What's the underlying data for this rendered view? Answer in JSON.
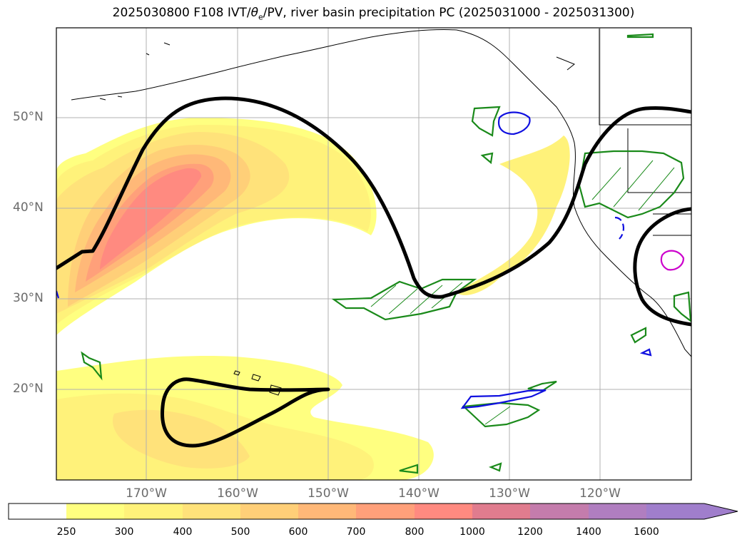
{
  "title_prefix": "2025030800 F108 IVT/",
  "title_theta": "θ",
  "title_theta_sub": "e",
  "title_suffix": "/PV, river basin precipitation PC (2025031000 - 2025031300)",
  "lat_labels": [
    "50°N",
    "40°N",
    "30°N",
    "20°N"
  ],
  "lon_labels": [
    "170°W",
    "160°W",
    "150°W",
    "140°W",
    "130°W",
    "120°W"
  ],
  "colorbar": {
    "levels": [
      "250",
      "300",
      "400",
      "500",
      "600",
      "700",
      "800",
      "1000",
      "1200",
      "1400",
      "1600"
    ],
    "colors": [
      "#ffffff",
      "#ffff80",
      "#fff27a",
      "#ffe27a",
      "#ffcf78",
      "#ffb878",
      "#ffa07a",
      "#ff8a80",
      "#e07c8e",
      "#c47cac",
      "#b07ec0",
      "#a07ecc"
    ],
    "extend": "max"
  },
  "colors": {
    "ivt_low": "#ffff80",
    "ivt_mid": "#ffe27a",
    "ivt_high": "#ffa07a",
    "ivt_peak": "#ff8a80",
    "pv_contour": "#000000",
    "green_contour": "#1a8a1a",
    "blue_contour": "#1010e0",
    "magenta_contour": "#cc00cc",
    "grid": "#b0b0b0",
    "axis_label": "#6b6b6b"
  }
}
